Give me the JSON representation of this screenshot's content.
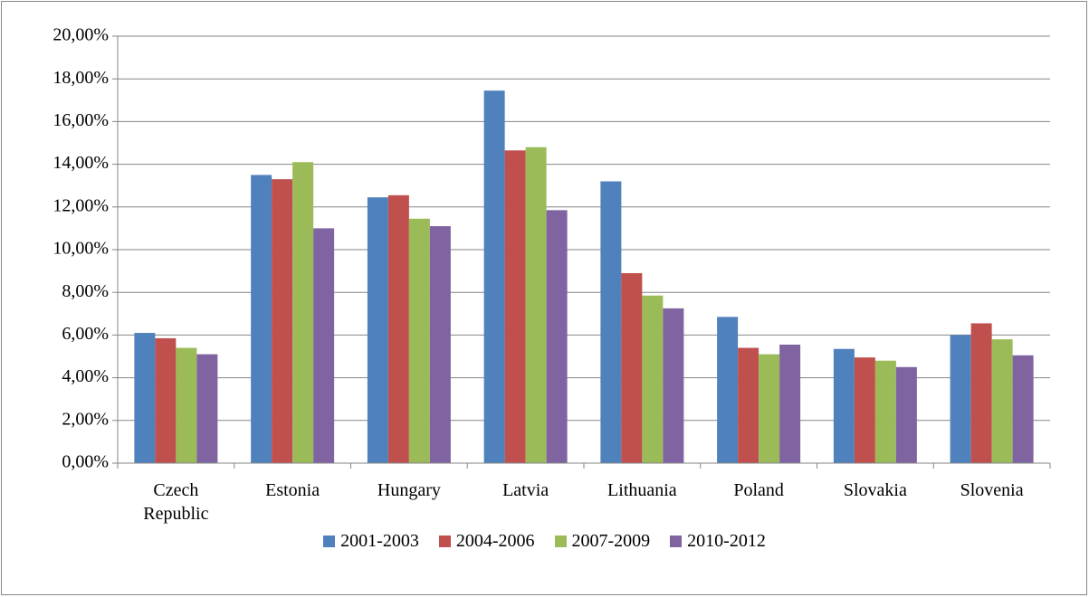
{
  "chart_data": {
    "type": "bar",
    "categories": [
      "Czech Republic",
      "Estonia",
      "Hungary",
      "Latvia",
      "Lithuania",
      "Poland",
      "Slovakia",
      "Slovenia"
    ],
    "series": [
      {
        "name": "2001-2003",
        "color": "#4f81bd",
        "values": [
          6.1,
          13.5,
          12.45,
          17.45,
          13.2,
          6.85,
          5.35,
          6.0
        ]
      },
      {
        "name": "2004-2006",
        "color": "#c0504d",
        "values": [
          5.85,
          13.3,
          12.55,
          14.65,
          8.9,
          5.4,
          4.95,
          6.55
        ]
      },
      {
        "name": "2007-2009",
        "color": "#9bbb59",
        "values": [
          5.4,
          14.1,
          11.45,
          14.8,
          7.85,
          5.1,
          4.8,
          5.8
        ]
      },
      {
        "name": "2010-2012",
        "color": "#8064a2",
        "values": [
          5.1,
          11.0,
          11.1,
          11.85,
          7.25,
          5.55,
          4.5,
          5.05
        ]
      }
    ],
    "ylim": [
      0,
      20
    ],
    "yticks": [
      {
        "value": 0,
        "label": "0,00%"
      },
      {
        "value": 2,
        "label": "2,00%"
      },
      {
        "value": 4,
        "label": "4,00%"
      },
      {
        "value": 6,
        "label": "6,00%"
      },
      {
        "value": 8,
        "label": "8,00%"
      },
      {
        "value": 10,
        "label": "10,00%"
      },
      {
        "value": 12,
        "label": "12,00%"
      },
      {
        "value": 14,
        "label": "14,00%"
      },
      {
        "value": 16,
        "label": "16,00%"
      },
      {
        "value": 18,
        "label": "18,00%"
      },
      {
        "value": 20,
        "label": "20,00%"
      }
    ],
    "grid": true
  }
}
